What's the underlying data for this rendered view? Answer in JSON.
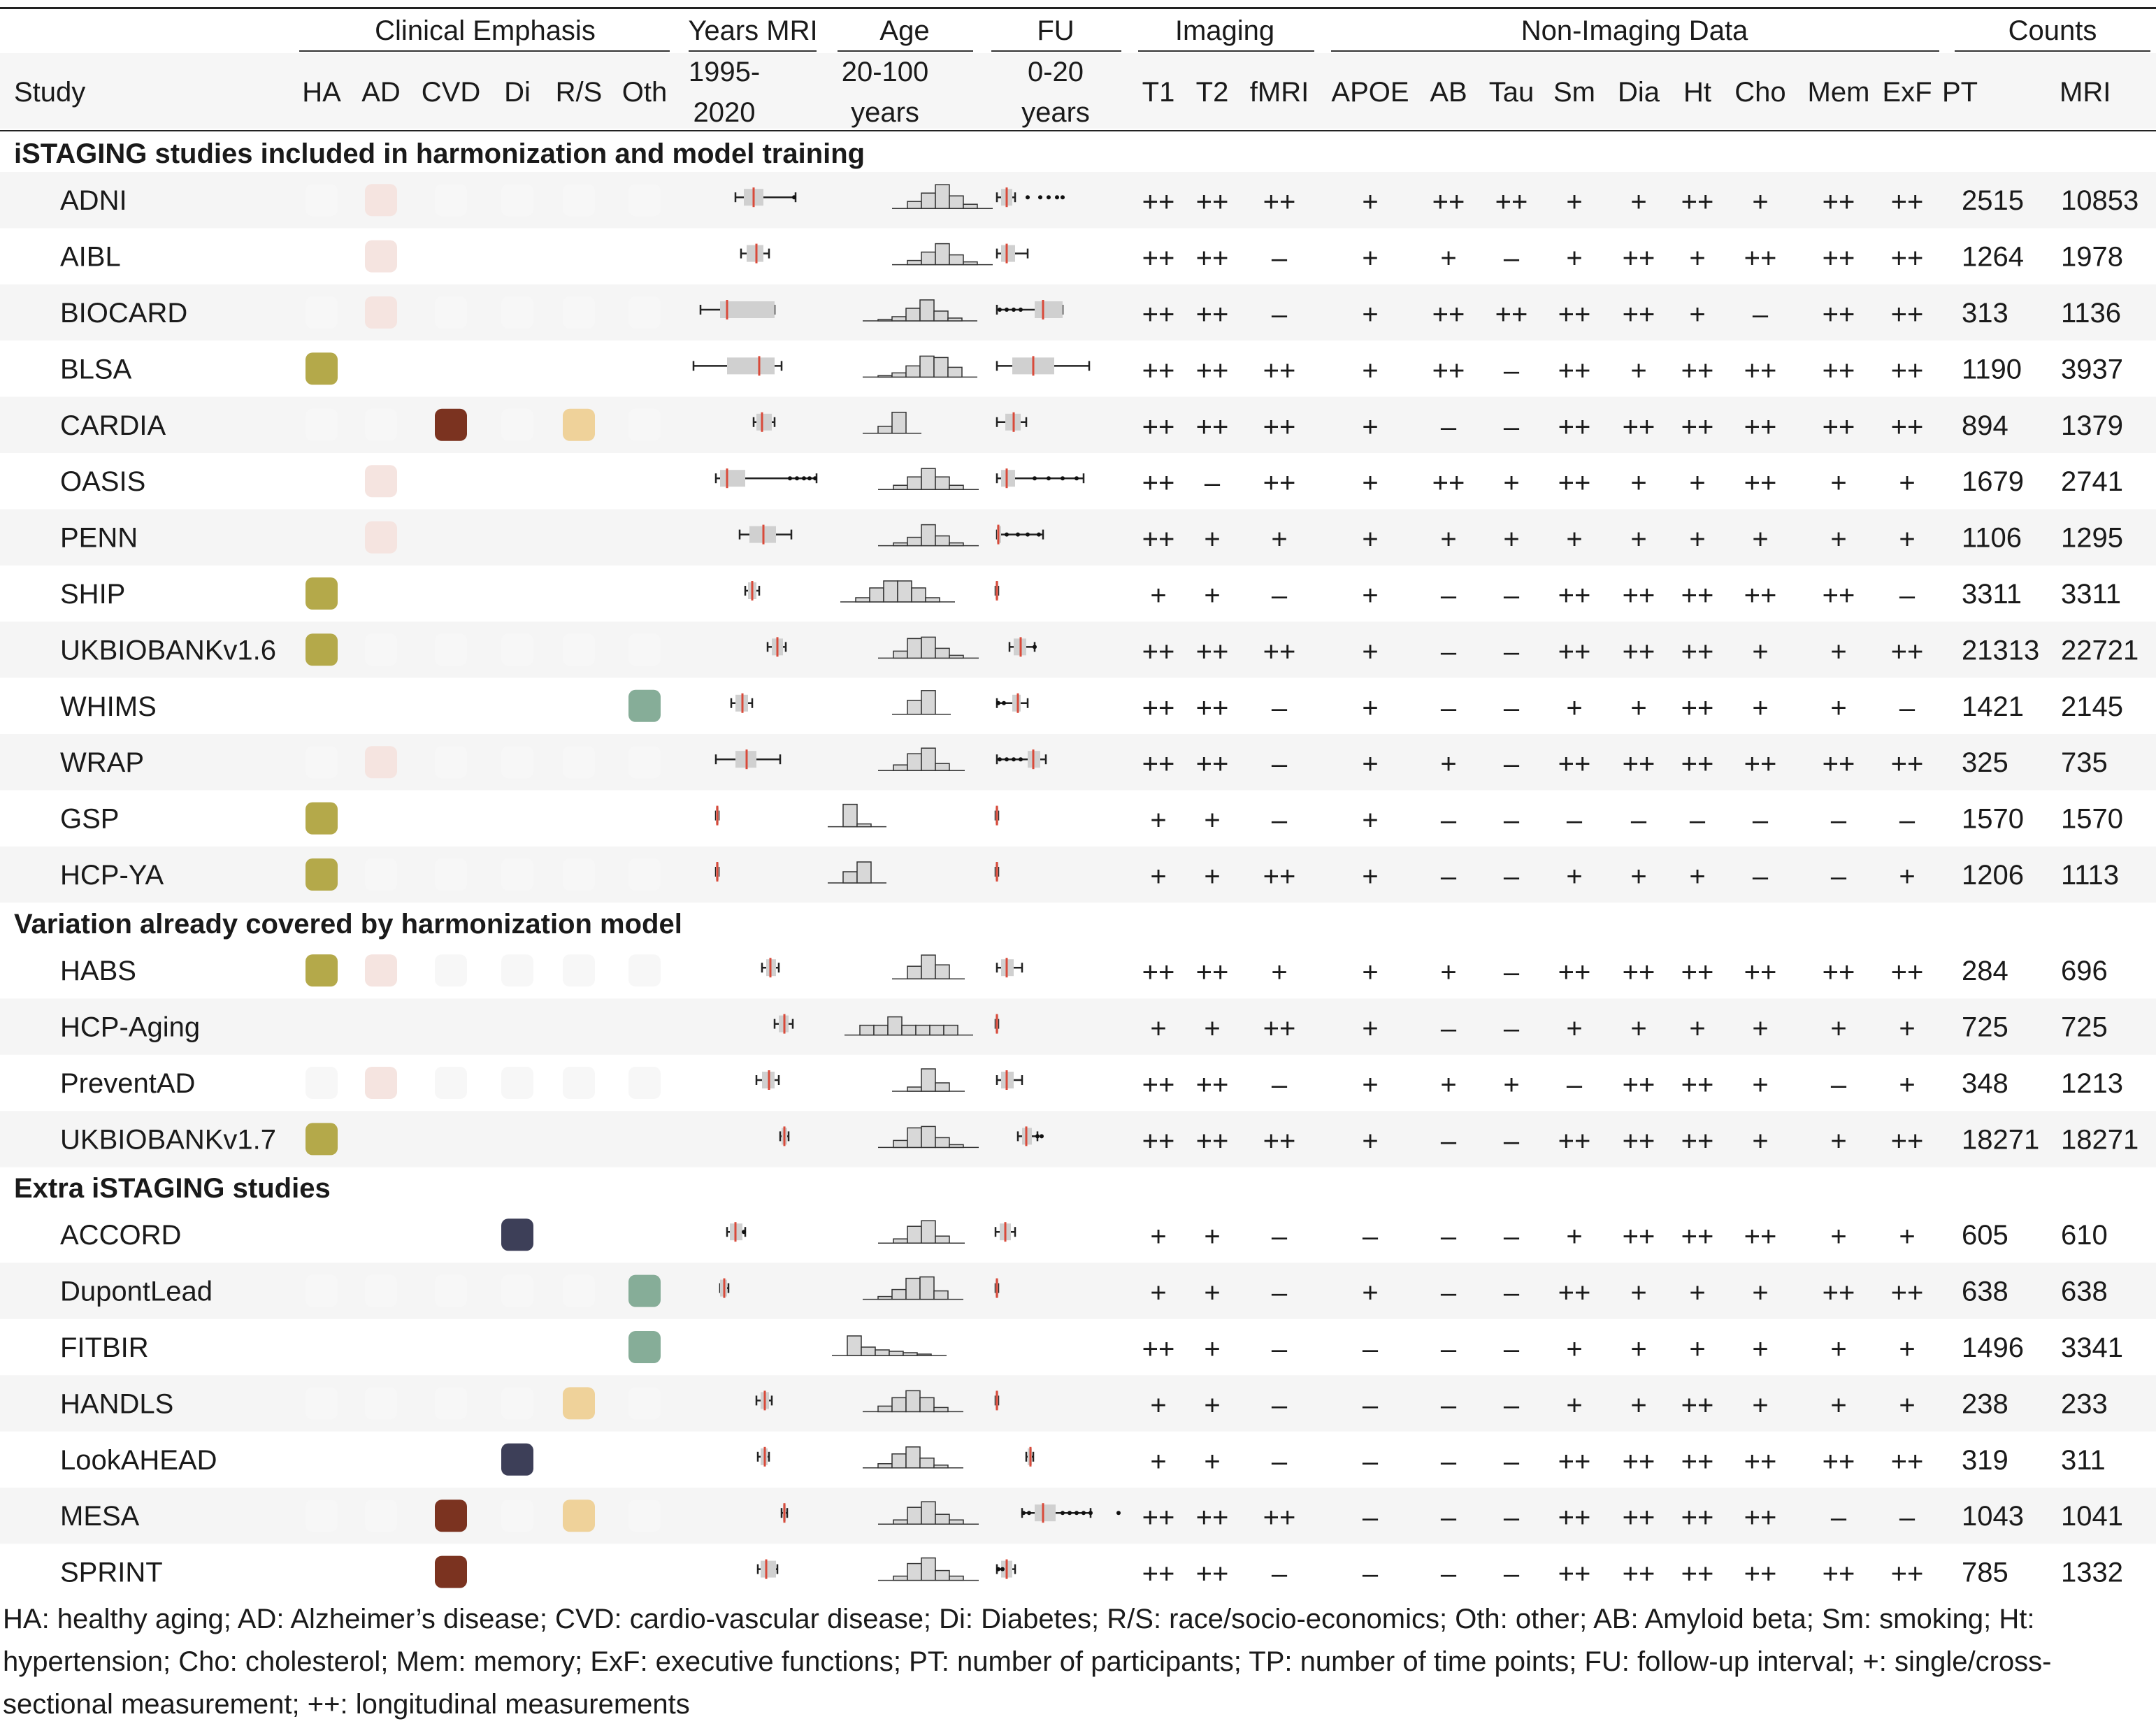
{
  "header": {
    "group_labels": [
      {
        "label": "Clinical Emphasis"
      },
      {
        "label": "Years MRI"
      },
      {
        "label": "Age"
      },
      {
        "label": "FU"
      },
      {
        "label": "Imaging"
      },
      {
        "label": "Non-Imaging Data"
      },
      {
        "label": "Counts"
      }
    ],
    "study_label": "Study",
    "range_labels": [
      {
        "line1": "1995-",
        "line2": "2020"
      },
      {
        "line1": "20-100",
        "line2": "years"
      },
      {
        "line1": "0-20",
        "line2": "years"
      }
    ],
    "clinical_columns": [
      "HA",
      "AD",
      "CVD",
      "Di",
      "R/S",
      "Oth"
    ],
    "data_columns": [
      "T1",
      "T2",
      "fMRI",
      "APOE",
      "AB",
      "Tau",
      "Sm",
      "Dia",
      "Ht",
      "Cho",
      "Mem",
      "ExF",
      "PT",
      "MRI"
    ]
  },
  "emphasis_colors": {
    "HA": "#b4a94a",
    "AD": "#f5e4e0",
    "CVD": "#7b3320",
    "Di": "#3d3f58",
    "R/S": "#efd29a",
    "Oth": "#86ad98",
    "empty": "#f7f7f7"
  },
  "sections": [
    {
      "title": "iSTAGING studies included in harmonization and model training",
      "rows": [
        {
          "study": "ADNI",
          "emph": [
            "",
            "AD",
            "",
            "",
            "",
            ""
          ],
          "vals": [
            "++",
            "++",
            "++",
            "+",
            "++",
            "++",
            "+",
            "+",
            "++",
            "+",
            "++",
            "++",
            "2515",
            "10853"
          ]
        },
        {
          "study": "AIBL",
          "emph": [
            "-",
            "AD",
            "-",
            "-",
            "-",
            "-"
          ],
          "vals": [
            "++",
            "++",
            "–",
            "+",
            "+",
            "–",
            "+",
            "++",
            "+",
            "++",
            "++",
            "++",
            "1264",
            "1978"
          ]
        },
        {
          "study": "BIOCARD",
          "emph": [
            "",
            "AD",
            "",
            "",
            "",
            ""
          ],
          "vals": [
            "++",
            "++",
            "–",
            "+",
            "++",
            "++",
            "++",
            "++",
            "+",
            "–",
            "++",
            "++",
            "313",
            "1136"
          ]
        },
        {
          "study": "BLSA",
          "emph": [
            "HA",
            "-",
            "-",
            "-",
            "-",
            "-"
          ],
          "vals": [
            "++",
            "++",
            "++",
            "+",
            "++",
            "–",
            "++",
            "+",
            "++",
            "++",
            "++",
            "++",
            "1190",
            "3937"
          ]
        },
        {
          "study": "CARDIA",
          "emph": [
            "",
            "",
            "CVD",
            "",
            "R/S",
            ""
          ],
          "vals": [
            "++",
            "++",
            "++",
            "+",
            "–",
            "–",
            "++",
            "++",
            "++",
            "++",
            "++",
            "++",
            "894",
            "1379"
          ]
        },
        {
          "study": "OASIS",
          "emph": [
            "-",
            "AD",
            "-",
            "-",
            "-",
            "-"
          ],
          "vals": [
            "++",
            "–",
            "++",
            "+",
            "++",
            "+",
            "++",
            "+",
            "+",
            "++",
            "+",
            "+",
            "1679",
            "2741"
          ]
        },
        {
          "study": "PENN",
          "emph": [
            "-",
            "AD",
            "-",
            "-",
            "-",
            "-"
          ],
          "vals": [
            "++",
            "+",
            "+",
            "+",
            "+",
            "+",
            "+",
            "+",
            "+",
            "+",
            "+",
            "+",
            "1106",
            "1295"
          ]
        },
        {
          "study": "SHIP",
          "emph": [
            "HA",
            "-",
            "-",
            "-",
            "-",
            "-"
          ],
          "vals": [
            "+",
            "+",
            "–",
            "+",
            "–",
            "–",
            "++",
            "++",
            "++",
            "++",
            "++",
            "–",
            "3311",
            "3311"
          ]
        },
        {
          "study": "UKBIOBANKv1.6",
          "emph": [
            "HA",
            "",
            "",
            "",
            "",
            ""
          ],
          "vals": [
            "++",
            "++",
            "++",
            "+",
            "–",
            "–",
            "++",
            "++",
            "++",
            "+",
            "+",
            "++",
            "21313",
            "22721"
          ]
        },
        {
          "study": "WHIMS",
          "emph": [
            "-",
            "-",
            "-",
            "-",
            "-",
            "Oth"
          ],
          "vals": [
            "++",
            "++",
            "–",
            "+",
            "–",
            "–",
            "+",
            "+",
            "++",
            "+",
            "+",
            "–",
            "1421",
            "2145"
          ]
        },
        {
          "study": "WRAP",
          "emph": [
            "",
            "AD",
            "",
            "",
            "",
            ""
          ],
          "vals": [
            "++",
            "++",
            "–",
            "+",
            "+",
            "–",
            "++",
            "++",
            "++",
            "++",
            "++",
            "++",
            "325",
            "735"
          ]
        },
        {
          "study": "GSP",
          "emph": [
            "HA",
            "-",
            "-",
            "-",
            "-",
            "-"
          ],
          "vals": [
            "+",
            "+",
            "–",
            "+",
            "–",
            "–",
            "–",
            "–",
            "–",
            "–",
            "–",
            "–",
            "1570",
            "1570"
          ]
        },
        {
          "study": "HCP-YA",
          "emph": [
            "HA",
            "",
            "",
            "",
            "",
            ""
          ],
          "vals": [
            "+",
            "+",
            "++",
            "+",
            "–",
            "–",
            "+",
            "+",
            "+",
            "–",
            "–",
            "+",
            "1206",
            "1113"
          ]
        }
      ]
    },
    {
      "title": "Variation already covered by harmonization model",
      "rows": [
        {
          "study": "HABS",
          "emph": [
            "HA",
            "AD",
            "",
            "",
            "",
            ""
          ],
          "vals": [
            "++",
            "++",
            "+",
            "+",
            "+",
            "–",
            "++",
            "++",
            "++",
            "++",
            "++",
            "++",
            "284",
            "696"
          ]
        },
        {
          "study": "HCP-Aging",
          "emph": [
            "-",
            "-",
            "-",
            "-",
            "-",
            "-"
          ],
          "vals": [
            "+",
            "+",
            "++",
            "+",
            "–",
            "–",
            "+",
            "+",
            "+",
            "+",
            "+",
            "+",
            "725",
            "725"
          ]
        },
        {
          "study": "PreventAD",
          "emph": [
            "",
            "AD",
            "",
            "",
            "",
            ""
          ],
          "vals": [
            "++",
            "++",
            "–",
            "+",
            "+",
            "+",
            "–",
            "++",
            "++",
            "+",
            "–",
            "+",
            "348",
            "1213"
          ]
        },
        {
          "study": "UKBIOBANKv1.7",
          "emph": [
            "HA",
            "-",
            "-",
            "-",
            "-",
            "-"
          ],
          "vals": [
            "++",
            "++",
            "++",
            "+",
            "–",
            "–",
            "++",
            "++",
            "++",
            "+",
            "+",
            "++",
            "18271",
            "18271"
          ]
        }
      ]
    },
    {
      "title": "Extra iSTAGING studies",
      "rows": [
        {
          "study": "ACCORD",
          "emph": [
            "-",
            "-",
            "-",
            "Di",
            "-",
            "-"
          ],
          "vals": [
            "+",
            "+",
            "–",
            "–",
            "–",
            "–",
            "+",
            "++",
            "++",
            "++",
            "+",
            "+",
            "605",
            "610"
          ]
        },
        {
          "study": "DupontLead",
          "emph": [
            "",
            "",
            "",
            "",
            "",
            "Oth"
          ],
          "vals": [
            "+",
            "+",
            "–",
            "+",
            "–",
            "–",
            "++",
            "+",
            "+",
            "+",
            "++",
            "++",
            "638",
            "638"
          ]
        },
        {
          "study": "FITBIR",
          "emph": [
            "-",
            "-",
            "-",
            "-",
            "-",
            "Oth"
          ],
          "vals": [
            "++",
            "+",
            "–",
            "–",
            "–",
            "–",
            "+",
            "+",
            "+",
            "+",
            "+",
            "+",
            "1496",
            "3341"
          ]
        },
        {
          "study": "HANDLS",
          "emph": [
            "",
            "",
            "",
            "",
            "R/S",
            ""
          ],
          "vals": [
            "+",
            "+",
            "–",
            "–",
            "–",
            "–",
            "+",
            "+",
            "++",
            "+",
            "+",
            "+",
            "238",
            "233"
          ]
        },
        {
          "study": "LookAHEAD",
          "emph": [
            "-",
            "-",
            "-",
            "Di",
            "-",
            "-"
          ],
          "vals": [
            "+",
            "+",
            "–",
            "–",
            "–",
            "–",
            "++",
            "++",
            "++",
            "++",
            "++",
            "++",
            "319",
            "311"
          ]
        },
        {
          "study": "MESA",
          "emph": [
            "",
            "",
            "CVD",
            "",
            "R/S",
            ""
          ],
          "vals": [
            "++",
            "++",
            "++",
            "–",
            "–",
            "–",
            "++",
            "++",
            "++",
            "++",
            "–",
            "–",
            "1043",
            "1041"
          ]
        },
        {
          "study": "SPRINT",
          "emph": [
            "-",
            "-",
            "CVD",
            "-",
            "-",
            "-"
          ],
          "vals": [
            "++",
            "++",
            "–",
            "–",
            "–",
            "–",
            "++",
            "++",
            "++",
            "++",
            "++",
            "++",
            "785",
            "1332"
          ]
        }
      ]
    }
  ],
  "footnote": "HA: healthy aging; AD: Alzheimer’s disease; CVD: cardio-vascular disease; Di: Diabetes; R/S: race/socio-economics; Oth: other; AB: Amyloid beta; Sm: smoking; Ht: hypertension; Cho: cholesterol; Mem: memory; ExF: executive functions; PT: number of participants; TP: number of time points; FU: follow-up interval; +: single/cross-sectional measurement; ++: longitudinal measurements"
}
